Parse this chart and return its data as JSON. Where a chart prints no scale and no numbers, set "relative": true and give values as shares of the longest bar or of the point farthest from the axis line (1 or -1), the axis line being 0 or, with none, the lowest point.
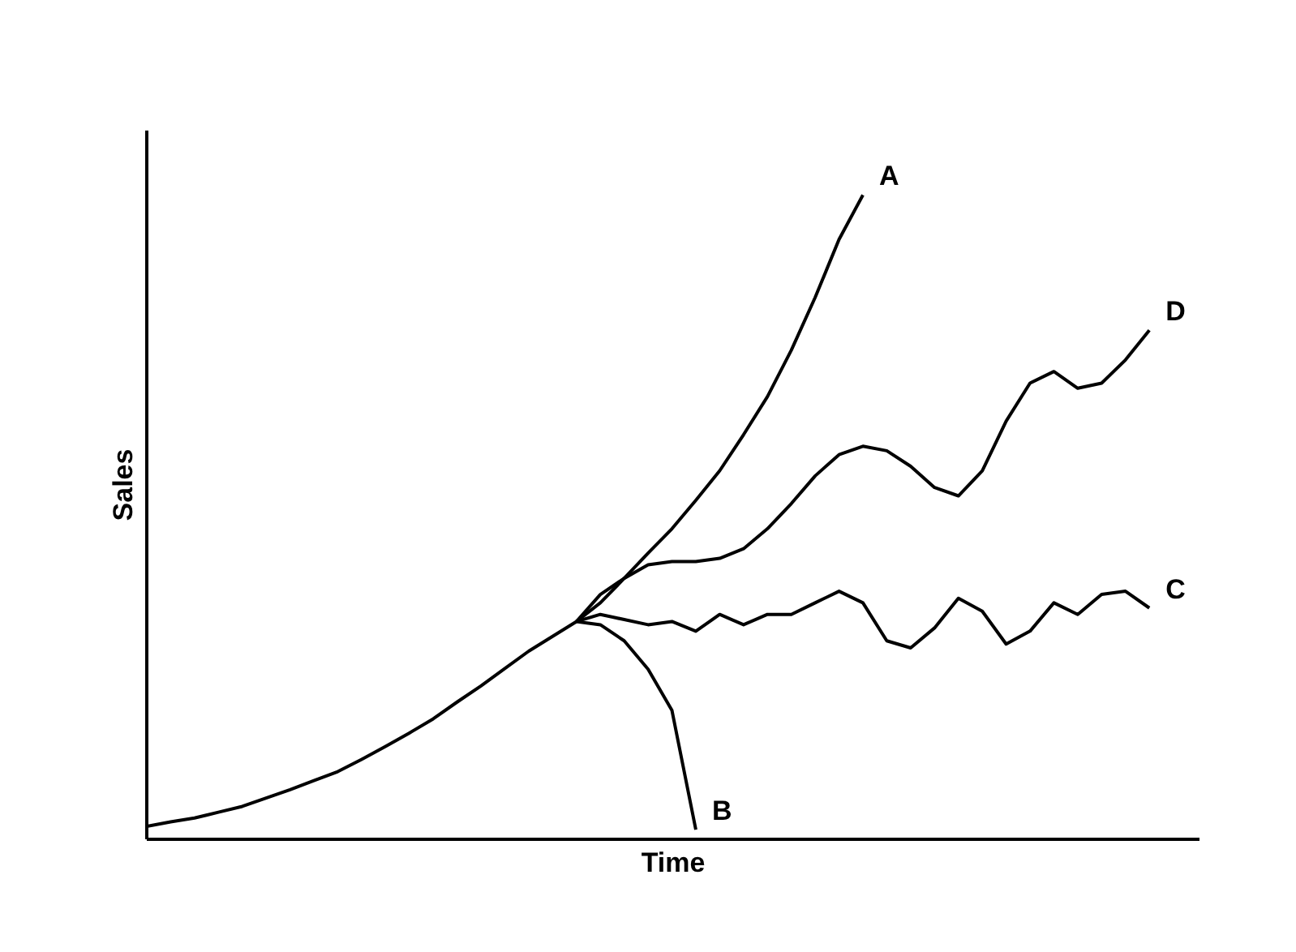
{
  "chart_data": {
    "type": "line",
    "relative": true,
    "xlabel": "Time",
    "ylabel": "Sales",
    "categories": [
      null,
      null,
      null,
      null,
      null,
      null,
      null,
      null,
      null,
      null,
      null,
      null,
      null,
      null,
      null,
      null,
      null,
      null,
      null,
      null,
      null,
      null,
      null,
      null,
      null,
      null,
      null,
      null,
      null,
      null,
      null,
      null,
      null,
      null,
      null,
      null,
      null,
      null,
      null,
      null,
      null,
      null,
      null
    ],
    "series": [
      {
        "name": "A",
        "color": "#000000",
        "values": [
          0.02,
          0.027,
          0.033,
          0.042,
          0.051,
          0.064,
          0.077,
          0.091,
          0.105,
          0.124,
          0.144,
          0.165,
          0.187,
          0.213,
          0.238,
          0.265,
          0.292,
          0.315,
          0.338,
          0.367,
          0.405,
          0.444,
          0.482,
          0.526,
          0.572,
          0.628,
          0.687,
          0.759,
          0.841,
          0.931,
          1.0,
          null,
          null,
          null,
          null,
          null,
          null,
          null,
          null,
          null,
          null,
          null,
          null
        ]
      },
      {
        "name": "B",
        "color": "#000000",
        "values": [
          null,
          null,
          null,
          null,
          null,
          null,
          null,
          null,
          null,
          null,
          null,
          null,
          null,
          null,
          null,
          null,
          null,
          null,
          0.338,
          0.333,
          0.308,
          0.264,
          0.2,
          0.015,
          null,
          null,
          null,
          null,
          null,
          null,
          null,
          null,
          null,
          null,
          null,
          null,
          null,
          null,
          null,
          null,
          null,
          null,
          null
        ]
      },
      {
        "name": "C",
        "color": "#000000",
        "values": [
          null,
          null,
          null,
          null,
          null,
          null,
          null,
          null,
          null,
          null,
          null,
          null,
          null,
          null,
          null,
          null,
          null,
          null,
          0.338,
          0.349,
          0.341,
          0.333,
          0.338,
          0.323,
          0.349,
          0.333,
          0.349,
          0.349,
          0.367,
          0.385,
          0.367,
          0.308,
          0.297,
          0.328,
          0.374,
          0.354,
          0.303,
          0.323,
          0.367,
          0.349,
          0.38,
          0.385,
          0.359
        ]
      },
      {
        "name": "D",
        "color": "#000000",
        "values": [
          null,
          null,
          null,
          null,
          null,
          null,
          null,
          null,
          null,
          null,
          null,
          null,
          null,
          null,
          null,
          null,
          null,
          null,
          0.338,
          0.38,
          0.405,
          0.426,
          0.431,
          0.431,
          0.436,
          0.451,
          0.482,
          0.521,
          0.564,
          0.597,
          0.61,
          0.603,
          0.579,
          0.546,
          0.533,
          0.572,
          0.649,
          0.708,
          0.726,
          0.7,
          0.708,
          0.744,
          0.79
        ]
      }
    ]
  }
}
